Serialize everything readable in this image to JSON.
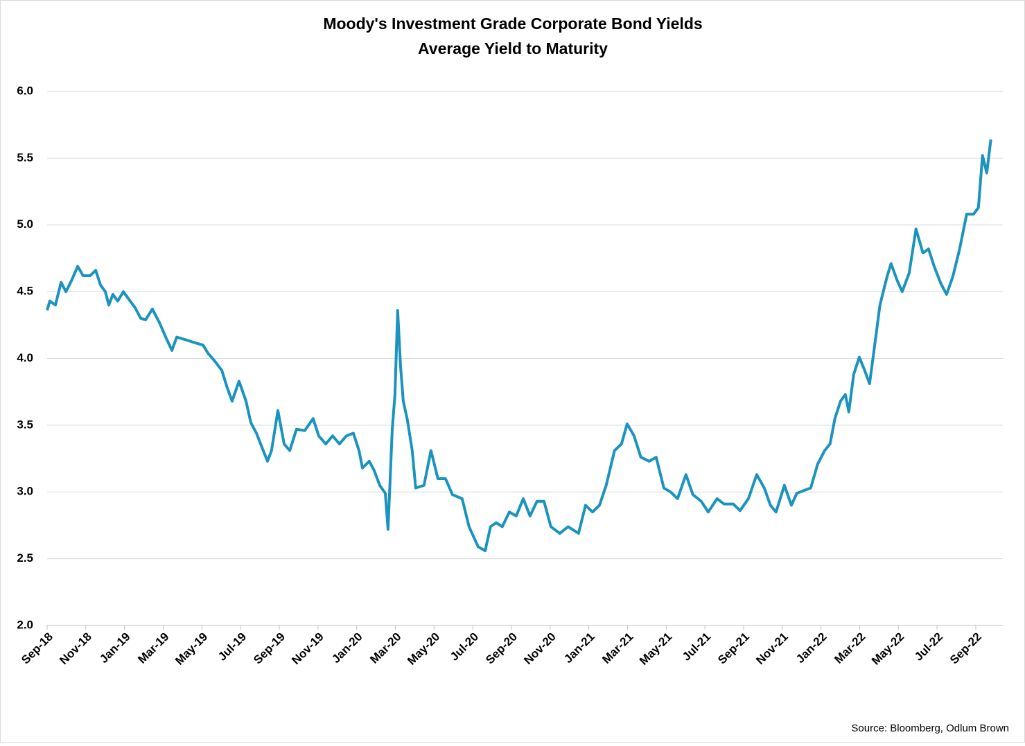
{
  "chart_data": {
    "type": "line",
    "title": "Moody's Investment Grade Corporate Bond Yields",
    "subtitle": "Average Yield to Maturity",
    "source": "Source: Bloomberg, Odlum Brown",
    "grid": true,
    "xlim": [
      0,
      49.4
    ],
    "ylim": [
      2,
      6
    ],
    "yticks": [
      {
        "value": 2,
        "label": "2.0"
      },
      {
        "value": 2.5,
        "label": "2.5"
      },
      {
        "value": 3,
        "label": "3.0"
      },
      {
        "value": 3.5,
        "label": "3.5"
      },
      {
        "value": 4,
        "label": "4.0"
      },
      {
        "value": 4.5,
        "label": "4.5"
      },
      {
        "value": 5,
        "label": "5.0"
      },
      {
        "value": 5.5,
        "label": "5.5"
      },
      {
        "value": 6,
        "label": "6.0"
      }
    ],
    "xticks": [
      {
        "value": 0,
        "label": "Sep-18"
      },
      {
        "value": 2,
        "label": "Nov-18"
      },
      {
        "value": 4,
        "label": "Jan-19"
      },
      {
        "value": 6,
        "label": "Mar-19"
      },
      {
        "value": 8,
        "label": "May-19"
      },
      {
        "value": 10,
        "label": "Jul-19"
      },
      {
        "value": 12,
        "label": "Sep-19"
      },
      {
        "value": 14,
        "label": "Nov-19"
      },
      {
        "value": 16,
        "label": "Jan-20"
      },
      {
        "value": 18,
        "label": "Mar-20"
      },
      {
        "value": 20,
        "label": "May-20"
      },
      {
        "value": 22,
        "label": "Jul-20"
      },
      {
        "value": 24,
        "label": "Sep-20"
      },
      {
        "value": 26,
        "label": "Nov-20"
      },
      {
        "value": 28,
        "label": "Jan-21"
      },
      {
        "value": 30,
        "label": "Mar-21"
      },
      {
        "value": 32,
        "label": "May-21"
      },
      {
        "value": 34,
        "label": "Jul-21"
      },
      {
        "value": 36,
        "label": "Sep-21"
      },
      {
        "value": 38,
        "label": "Nov-21"
      },
      {
        "value": 40,
        "label": "Jan-22"
      },
      {
        "value": 42,
        "label": "Mar-22"
      },
      {
        "value": 44,
        "label": "May-22"
      },
      {
        "value": 46,
        "label": "Jul-22"
      },
      {
        "value": 48,
        "label": "Sep-22"
      }
    ],
    "x": [
      0,
      0.14,
      0.43,
      0.72,
      0.97,
      1.25,
      1.58,
      1.86,
      2.22,
      2.51,
      2.76,
      3.01,
      3.19,
      3.4,
      3.65,
      3.94,
      4.19,
      4.55,
      4.84,
      5.09,
      5.44,
      5.8,
      6.16,
      6.45,
      6.7,
      7.16,
      7.59,
      8.06,
      8.31,
      8.67,
      9.03,
      9.31,
      9.56,
      9.92,
      10.28,
      10.53,
      10.82,
      11.17,
      11.39,
      11.6,
      11.93,
      12.25,
      12.54,
      12.89,
      13.32,
      13.75,
      14.04,
      14.4,
      14.76,
      15.11,
      15.47,
      15.83,
      16.12,
      16.3,
      16.65,
      16.91,
      17.19,
      17.48,
      17.62,
      17.84,
      17.98,
      18.12,
      18.27,
      18.41,
      18.62,
      18.87,
      19.05,
      19.48,
      19.84,
      20.2,
      20.59,
      20.95,
      21.45,
      21.81,
      22.28,
      22.64,
      22.92,
      23.21,
      23.53,
      23.89,
      24.25,
      24.61,
      24.96,
      25.32,
      25.68,
      26.04,
      26.5,
      26.93,
      27.47,
      27.83,
      28.19,
      28.55,
      28.9,
      29.33,
      29.69,
      29.98,
      30.34,
      30.69,
      31.12,
      31.48,
      31.88,
      32.23,
      32.59,
      33.02,
      33.38,
      33.81,
      34.17,
      34.63,
      34.99,
      35.46,
      35.82,
      36.25,
      36.68,
      37.07,
      37.39,
      37.68,
      38.11,
      38.47,
      38.75,
      39.11,
      39.47,
      39.83,
      40.19,
      40.47,
      40.72,
      41.01,
      41.26,
      41.44,
      41.69,
      41.98,
      42.26,
      42.51,
      42.77,
      43.05,
      43.41,
      43.62,
      43.95,
      44.2,
      44.56,
      44.91,
      45.27,
      45.56,
      45.85,
      46.2,
      46.49,
      46.81,
      47.17,
      47.53,
      47.89,
      48.14,
      48.35,
      48.57,
      48.78
    ],
    "series": [
      {
        "name": "Average Yield to Maturity",
        "color": "#1a93bf",
        "values": [
          4.36,
          4.43,
          4.4,
          4.57,
          4.5,
          4.58,
          4.69,
          4.62,
          4.62,
          4.66,
          4.55,
          4.5,
          4.4,
          4.48,
          4.43,
          4.5,
          4.45,
          4.38,
          4.3,
          4.29,
          4.37,
          4.27,
          4.15,
          4.06,
          4.16,
          4.14,
          4.12,
          4.1,
          4.04,
          3.98,
          3.91,
          3.78,
          3.68,
          3.83,
          3.68,
          3.52,
          3.44,
          3.31,
          3.23,
          3.31,
          3.61,
          3.36,
          3.31,
          3.47,
          3.46,
          3.55,
          3.42,
          3.36,
          3.42,
          3.36,
          3.42,
          3.44,
          3.31,
          3.18,
          3.23,
          3.16,
          3.05,
          2.99,
          2.72,
          3.47,
          3.73,
          4.36,
          3.94,
          3.68,
          3.54,
          3.31,
          3.03,
          3.05,
          3.31,
          3.1,
          3.1,
          2.98,
          2.95,
          2.74,
          2.59,
          2.56,
          2.74,
          2.77,
          2.74,
          2.85,
          2.82,
          2.95,
          2.82,
          2.93,
          2.93,
          2.74,
          2.69,
          2.74,
          2.69,
          2.9,
          2.85,
          2.9,
          3.05,
          3.31,
          3.36,
          3.51,
          3.42,
          3.26,
          3.23,
          3.26,
          3.03,
          3,
          2.95,
          3.13,
          2.98,
          2.93,
          2.85,
          2.95,
          2.91,
          2.91,
          2.86,
          2.95,
          3.13,
          3.03,
          2.9,
          2.85,
          3.05,
          2.9,
          2.99,
          3.01,
          3.03,
          3.21,
          3.31,
          3.36,
          3.55,
          3.68,
          3.73,
          3.6,
          3.88,
          4.01,
          3.91,
          3.81,
          4.09,
          4.4,
          4.61,
          4.71,
          4.58,
          4.5,
          4.64,
          4.97,
          4.79,
          4.82,
          4.69,
          4.56,
          4.48,
          4.61,
          4.82,
          5.08,
          5.08,
          5.13,
          5.52,
          5.39,
          5.64
        ]
      }
    ]
  }
}
